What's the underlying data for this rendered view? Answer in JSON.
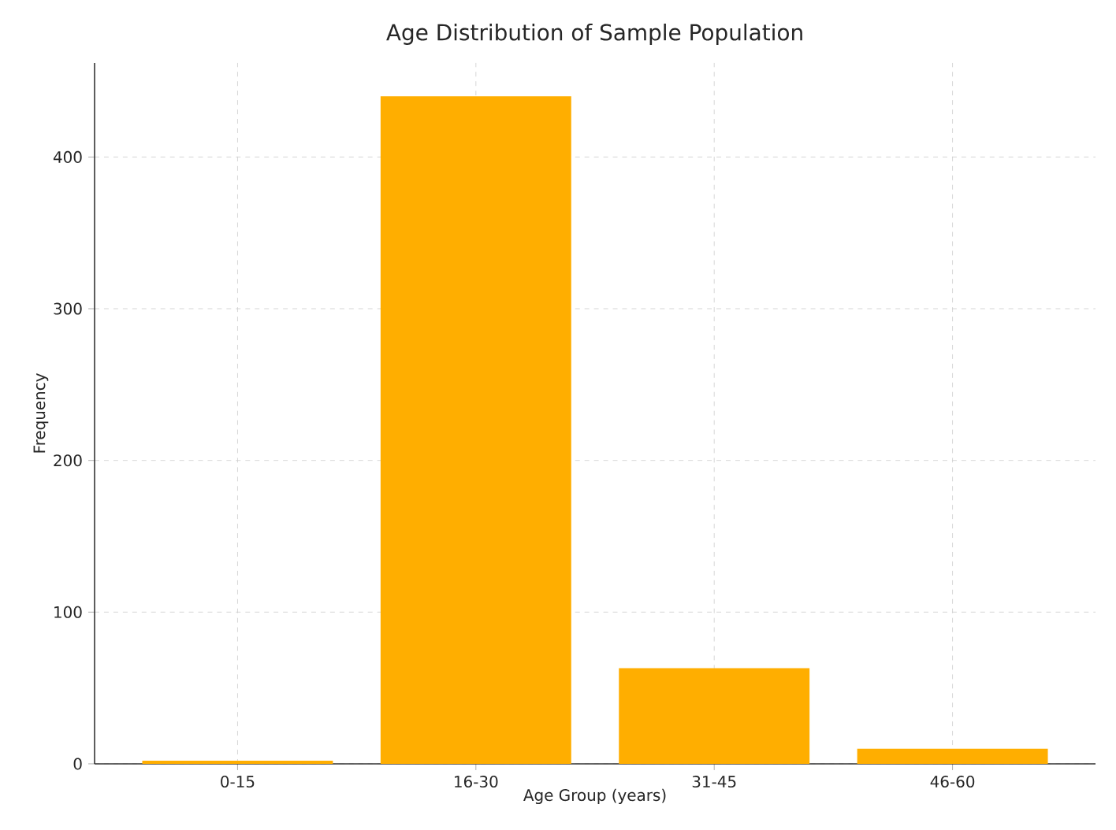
{
  "chart_data": {
    "type": "bar",
    "title": "Age Distribution of Sample Population",
    "xlabel": "Age Group (years)",
    "ylabel": "Frequency",
    "categories": [
      "0-15",
      "16-30",
      "31-45",
      "46-60"
    ],
    "values": [
      2,
      440,
      63,
      10
    ],
    "color": "#ffae00",
    "ylim": [
      0,
      462
    ],
    "yticks": [
      0,
      100,
      200,
      300,
      400
    ],
    "grid": true
  }
}
